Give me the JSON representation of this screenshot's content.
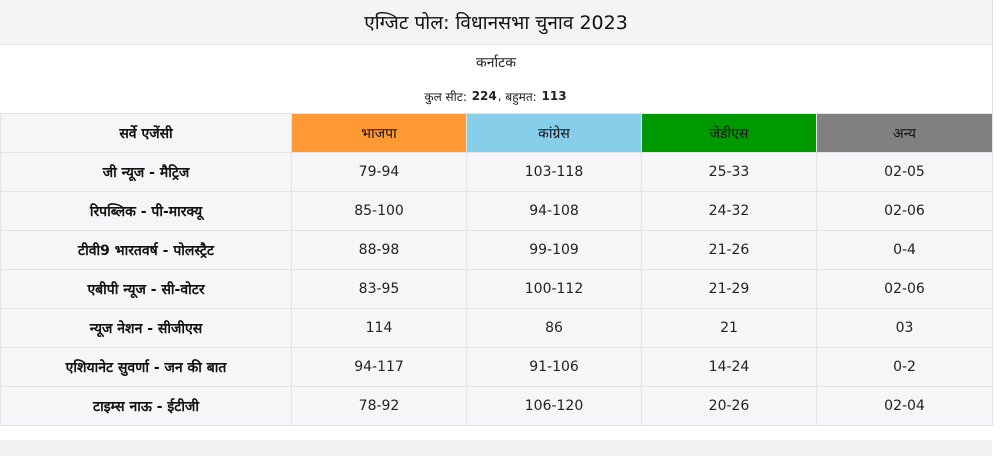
{
  "poll": {
    "title": "एग्जिट पोल: विधानसभा चुनाव 2023",
    "state": "कर्नाटक",
    "seats": {
      "total_label": "कुल सीट:",
      "total_value": "224",
      "separator": ",",
      "majority_label": "बहुमत:",
      "majority_value": "113"
    }
  },
  "table": {
    "headers": [
      {
        "label": "सर्वे एजेंसी",
        "color": "#f6f6f8"
      },
      {
        "label": "भाजपा",
        "color": "#ff9933"
      },
      {
        "label": "कांग्रेस",
        "color": "#87ceeb"
      },
      {
        "label": "जेडीएस",
        "color": "#009900"
      },
      {
        "label": "अन्य",
        "color": "#808080"
      }
    ],
    "rows": [
      {
        "agency": "जी न्यूज - मैट्रिज",
        "values": [
          "79-94",
          "103-118",
          "25-33",
          "02-05"
        ]
      },
      {
        "agency": "रिपब्लिक - पी-मारक्यू",
        "values": [
          "85-100",
          "94-108",
          "24-32",
          "02-06"
        ]
      },
      {
        "agency": "टीवी9 भारतवर्ष - पोलस्ट्रैट",
        "values": [
          "88-98",
          "99-109",
          "21-26",
          "0-4"
        ]
      },
      {
        "agency": "एबीपी न्यूज - सी-वोटर",
        "values": [
          "83-95",
          "100-112",
          "21-29",
          "02-06"
        ]
      },
      {
        "agency": "न्यूज नेशन - सीजीएस",
        "values": [
          "114",
          "86",
          "21",
          "03"
        ]
      },
      {
        "agency": "एशियानेट सुवर्णा - जन की बात",
        "values": [
          "94-117",
          "91-106",
          "14-24",
          "0-2"
        ]
      },
      {
        "agency": "टाइम्स नाऊ - ईटीजी",
        "values": [
          "78-92",
          "106-120",
          "20-26",
          "02-04"
        ]
      }
    ]
  }
}
